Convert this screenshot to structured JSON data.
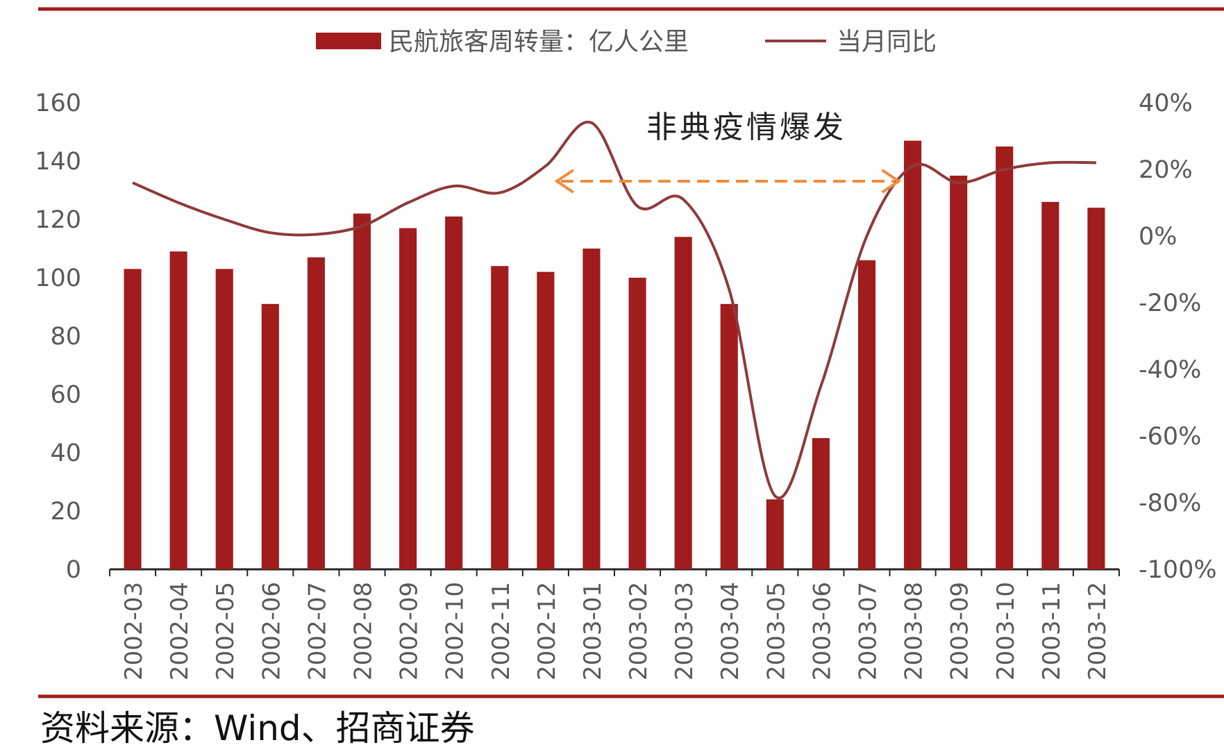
{
  "chart_data": {
    "type": "bar",
    "categories": [
      "2002-03",
      "2002-04",
      "2002-05",
      "2002-06",
      "2002-07",
      "2002-08",
      "2002-09",
      "2002-10",
      "2002-11",
      "2002-12",
      "2003-01",
      "2003-02",
      "2003-03",
      "2003-04",
      "2003-05",
      "2003-06",
      "2003-07",
      "2003-08",
      "2003-09",
      "2003-10",
      "2003-11",
      "2003-12"
    ],
    "series": [
      {
        "name": "民航旅客周转量：亿人公里",
        "type": "bar",
        "axis": "left",
        "color": "#A11C1C",
        "values": [
          103,
          109,
          103,
          91,
          107,
          122,
          117,
          121,
          104,
          102,
          110,
          100,
          114,
          91,
          24,
          45,
          106,
          147,
          135,
          145,
          126,
          124
        ]
      },
      {
        "name": "当月同比",
        "type": "line",
        "axis": "right",
        "color": "#8E3A3A",
        "values": [
          16,
          10,
          5,
          1,
          0.5,
          3,
          10,
          15,
          13,
          21,
          34,
          9,
          11,
          -16,
          -78,
          -45,
          0,
          21,
          16,
          20,
          22,
          22
        ]
      }
    ],
    "y_left": {
      "min": 0,
      "max": 160,
      "ticks": [
        0,
        20,
        40,
        60,
        80,
        100,
        120,
        140,
        160
      ]
    },
    "y_right": {
      "min": -100,
      "max": 40,
      "ticks": [
        "-100%",
        "-80%",
        "-60%",
        "-40%",
        "-20%",
        "0%",
        "20%",
        "40%"
      ]
    },
    "legend": "top-center",
    "annotation": {
      "text": "非典疫情爆发",
      "from_category": "2003-01",
      "to_category": "2003-08",
      "color": "#F08C3A"
    },
    "grid": false
  },
  "source": "资料来源：Wind、招商证券",
  "rule_color": "#A11C1C"
}
